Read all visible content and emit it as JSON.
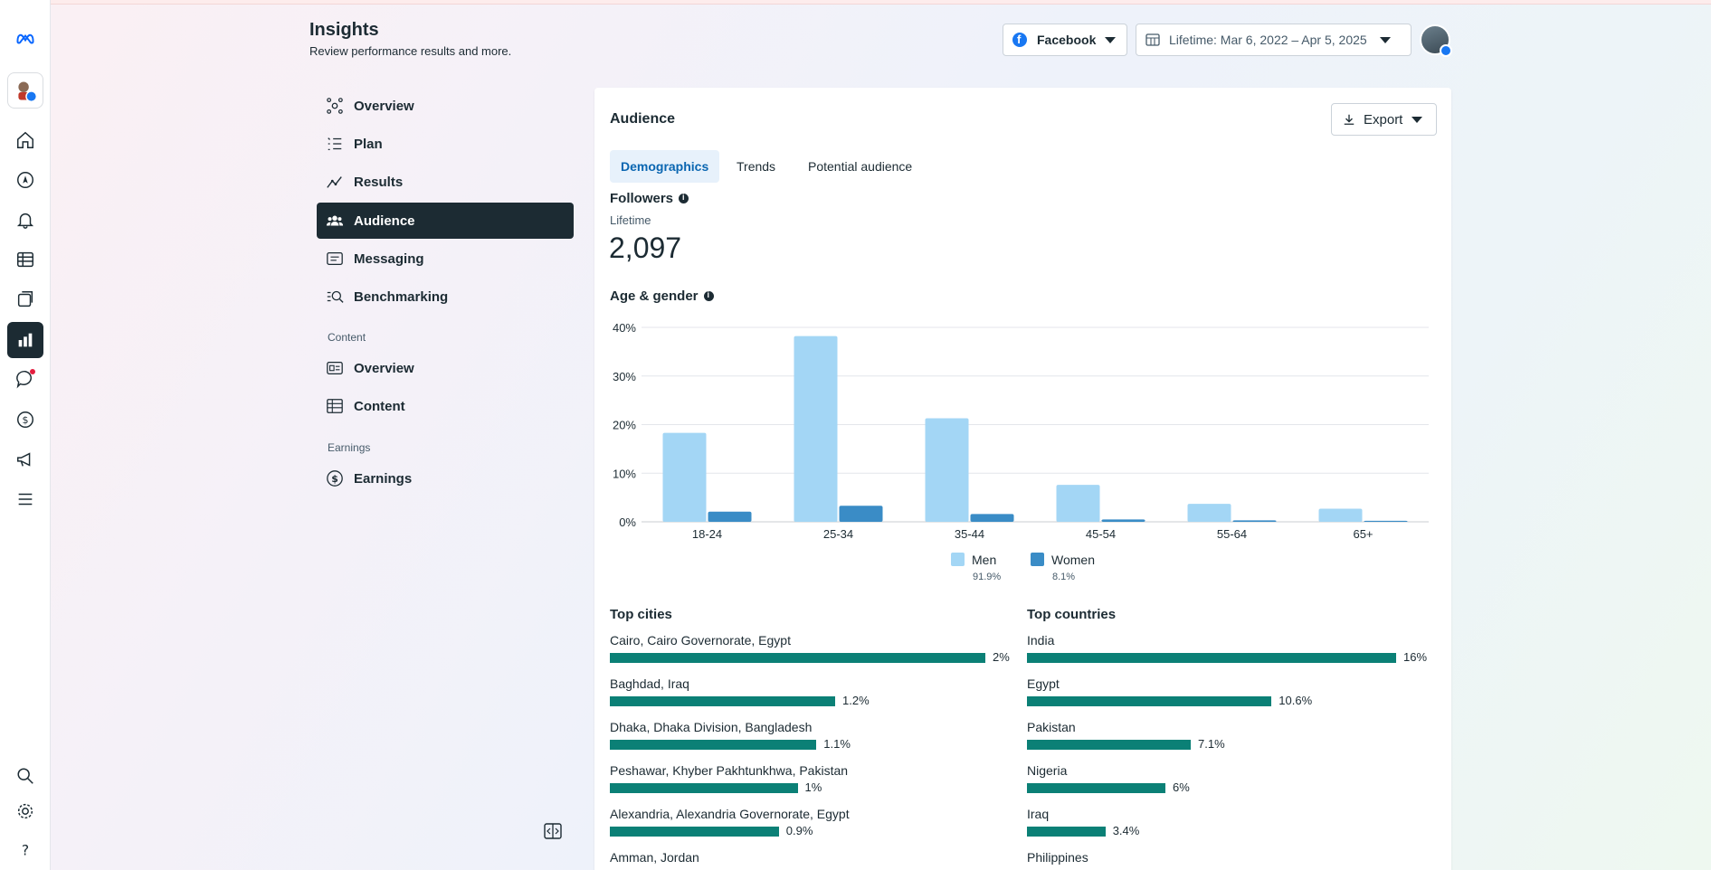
{
  "header": {
    "title": "Insights",
    "subtitle": "Review performance results and more.",
    "platform": "Facebook",
    "date_range": "Lifetime: Mar 6, 2022 – Apr 5, 2025"
  },
  "nav": {
    "items": [
      {
        "label": "Overview",
        "icon": "overview-icon"
      },
      {
        "label": "Plan",
        "icon": "plan-icon"
      },
      {
        "label": "Results",
        "icon": "results-icon"
      },
      {
        "label": "Audience",
        "icon": "audience-icon",
        "active": true
      },
      {
        "label": "Messaging",
        "icon": "messaging-icon"
      },
      {
        "label": "Benchmarking",
        "icon": "benchmarking-icon"
      }
    ],
    "content_section": "Content",
    "content_items": [
      {
        "label": "Overview",
        "icon": "content-overview-icon"
      },
      {
        "label": "Content",
        "icon": "content-table-icon"
      }
    ],
    "earnings_section": "Earnings",
    "earnings_items": [
      {
        "label": "Earnings",
        "icon": "earnings-icon"
      }
    ]
  },
  "card": {
    "title": "Audience",
    "export_label": "Export",
    "tabs": [
      "Demographics",
      "Trends",
      "Potential audience"
    ],
    "followers": {
      "label": "Followers",
      "period": "Lifetime",
      "value": "2,097"
    },
    "age_gender_title": "Age & gender"
  },
  "chart_data": {
    "type": "bar",
    "categories": [
      "18-24",
      "25-34",
      "35-44",
      "45-54",
      "55-64",
      "65+"
    ],
    "series": [
      {
        "name": "Men",
        "values": [
          18.3,
          38.2,
          21.3,
          7.6,
          3.7,
          2.7
        ],
        "color": "#a3d6f5",
        "share": "91.9%"
      },
      {
        "name": "Women",
        "values": [
          2.1,
          3.3,
          1.6,
          0.5,
          0.3,
          0.2
        ],
        "color": "#3a8cc6",
        "share": "8.1%"
      }
    ],
    "ylim": [
      0,
      40
    ],
    "yticks": [
      "0%",
      "10%",
      "20%",
      "30%",
      "40%"
    ],
    "grid": true,
    "legend": "bottom"
  },
  "top_cities": {
    "title": "Top cities",
    "rows": [
      {
        "label": "Cairo, Cairo Governorate, Egypt",
        "value": 2.0,
        "display": "2%"
      },
      {
        "label": "Baghdad, Iraq",
        "value": 1.2,
        "display": "1.2%"
      },
      {
        "label": "Dhaka, Dhaka Division, Bangladesh",
        "value": 1.1,
        "display": "1.1%"
      },
      {
        "label": "Peshawar, Khyber Pakhtunkhwa, Pakistan",
        "value": 1.0,
        "display": "1%"
      },
      {
        "label": "Alexandria, Alexandria Governorate, Egypt",
        "value": 0.9,
        "display": "0.9%"
      },
      {
        "label": "Amman, Jordan",
        "value": null,
        "display": ""
      }
    ]
  },
  "top_countries": {
    "title": "Top countries",
    "rows": [
      {
        "label": "India",
        "value": 16.0,
        "display": "16%"
      },
      {
        "label": "Egypt",
        "value": 10.6,
        "display": "10.6%"
      },
      {
        "label": "Pakistan",
        "value": 7.1,
        "display": "7.1%"
      },
      {
        "label": "Nigeria",
        "value": 6.0,
        "display": "6%"
      },
      {
        "label": "Iraq",
        "value": 3.4,
        "display": "3.4%"
      },
      {
        "label": "Philippines",
        "value": null,
        "display": ""
      }
    ]
  },
  "colors": {
    "accent_dark": "#1c2b33",
    "bar_green": "#0b8076",
    "brand_blue": "#0866ff"
  }
}
